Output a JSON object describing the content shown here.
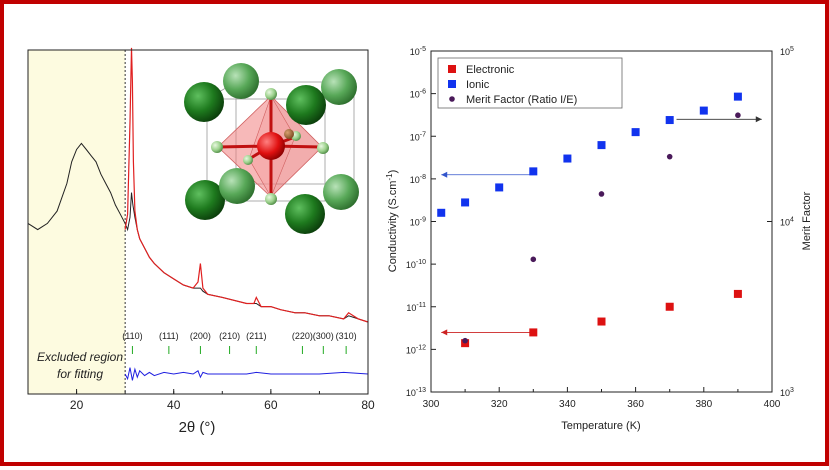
{
  "frame_color": "#c00000",
  "chart_data": [
    {
      "type": "line",
      "xlabel": "2θ (°)",
      "ylabel": "",
      "xlim": [
        10,
        80
      ],
      "x_ticks": [
        20,
        40,
        60,
        80
      ],
      "excluded_region": {
        "x_range": [
          10,
          30
        ],
        "label_line1": "Excluded region",
        "label_line2": "for fitting",
        "color": "#fdfbe0"
      },
      "series": [
        {
          "color": "#222222",
          "x": [
            10,
            12,
            14,
            16,
            18,
            19,
            20,
            21,
            22,
            23,
            24,
            25,
            26,
            27,
            28,
            29,
            30,
            30.5,
            31,
            31.3,
            31.6,
            32,
            32.5,
            33,
            34,
            35,
            36,
            38,
            40,
            42,
            44,
            45,
            45.5,
            46,
            47,
            50,
            55,
            56.5,
            57,
            58,
            60,
            62,
            65,
            67,
            70,
            72,
            75,
            76,
            78,
            80
          ],
          "y": [
            0.42,
            0.4,
            0.42,
            0.46,
            0.55,
            0.62,
            0.66,
            0.68,
            0.66,
            0.64,
            0.62,
            0.58,
            0.55,
            0.52,
            0.48,
            0.45,
            0.42,
            0.4,
            0.44,
            0.52,
            0.48,
            0.44,
            0.4,
            0.37,
            0.34,
            0.31,
            0.29,
            0.26,
            0.24,
            0.22,
            0.21,
            0.21,
            0.21,
            0.2,
            0.19,
            0.18,
            0.16,
            0.16,
            0.16,
            0.15,
            0.15,
            0.14,
            0.13,
            0.13,
            0.12,
            0.12,
            0.11,
            0.12,
            0.11,
            0.1
          ]
        },
        {
          "color": "#e02020",
          "x": [
            30,
            30.5,
            31,
            31.3,
            31.5,
            31.7,
            32,
            32.5,
            33,
            34,
            35,
            36,
            38,
            40,
            42,
            44,
            45,
            45.5,
            46,
            47,
            50,
            55,
            56.5,
            57,
            58,
            60,
            62,
            65,
            67,
            70,
            72,
            75,
            76,
            78,
            80
          ],
          "y": [
            0.4,
            0.45,
            0.75,
            0.99,
            0.88,
            0.62,
            0.46,
            0.4,
            0.37,
            0.34,
            0.31,
            0.29,
            0.26,
            0.24,
            0.22,
            0.21,
            0.23,
            0.29,
            0.21,
            0.19,
            0.18,
            0.16,
            0.16,
            0.18,
            0.15,
            0.15,
            0.14,
            0.13,
            0.13,
            0.12,
            0.12,
            0.11,
            0.13,
            0.11,
            0.1
          ]
        },
        {
          "color": "#2020e0",
          "x": [
            30,
            30.5,
            31,
            31.5,
            32,
            32.5,
            33,
            34,
            35,
            36,
            38,
            40,
            42,
            44,
            45,
            45.5,
            46,
            47,
            50,
            55,
            57,
            60,
            65,
            70,
            75,
            80
          ],
          "y": [
            0.0,
            -0.03,
            0.04,
            -0.04,
            0.03,
            -0.02,
            0.02,
            -0.01,
            0.01,
            -0.01,
            0.01,
            0.0,
            0.01,
            0.0,
            0.02,
            -0.02,
            0.01,
            0.0,
            0.0,
            0.0,
            0.01,
            0.0,
            0.0,
            0.0,
            0.01,
            0.0
          ]
        }
      ],
      "peak_labels": [
        {
          "text": "(110)",
          "x": 31.5
        },
        {
          "text": "(111)",
          "x": 39
        },
        {
          "text": "(200)",
          "x": 45.5
        },
        {
          "text": "(210)",
          "x": 51.5
        },
        {
          "text": "(211)",
          "x": 57
        },
        {
          "text": "(220)",
          "x": 66.5
        },
        {
          "text": "(300)",
          "x": 70.8
        },
        {
          "text": "(310)",
          "x": 75.5
        }
      ],
      "tick_mark_color": "#22aa22"
    },
    {
      "type": "scatter",
      "xlabel": "Temperature (K)",
      "ylabel": "Conductivity (S.cm",
      "ylabel_sup": "-1",
      "ylabel_close": ")",
      "y2label": "Merit Factor",
      "xlim": [
        300,
        400
      ],
      "x_ticks": [
        300,
        320,
        340,
        360,
        380,
        400
      ],
      "ylim_exp": [
        -13,
        -5
      ],
      "y_ticks": [
        {
          "exp": -13,
          "base": "10",
          "sup": "-13"
        },
        {
          "exp": -12,
          "base": "10",
          "sup": "-12"
        },
        {
          "exp": -11,
          "base": "10",
          "sup": "-11"
        },
        {
          "exp": -10,
          "base": "10",
          "sup": "-10"
        },
        {
          "exp": -9,
          "base": "10",
          "sup": "-9"
        },
        {
          "exp": -8,
          "base": "10",
          "sup": "-8"
        },
        {
          "exp": -7,
          "base": "10",
          "sup": "-7"
        },
        {
          "exp": -6,
          "base": "10",
          "sup": "-6"
        },
        {
          "exp": -5,
          "base": "10",
          "sup": "-5"
        }
      ],
      "y2lim_exp": [
        3,
        5
      ],
      "y2_ticks": [
        {
          "exp": 3,
          "base": "10",
          "sup": "3"
        },
        {
          "exp": 4,
          "base": "10",
          "sup": "4"
        },
        {
          "exp": 5,
          "base": "10",
          "sup": "5"
        }
      ],
      "legend_position": "top-left",
      "series": [
        {
          "name": "Electronic",
          "color": "#dd1111",
          "marker": "square",
          "axis": "left",
          "x": [
            310,
            330,
            350,
            370,
            390
          ],
          "y": [
            1.4e-12,
            2.5e-12,
            4.5e-12,
            1e-11,
            2e-11
          ]
        },
        {
          "name": "Ionic",
          "color": "#1133ee",
          "marker": "square",
          "axis": "left",
          "x": [
            303,
            310,
            320,
            330,
            340,
            350,
            360,
            370,
            380,
            390
          ],
          "y": [
            1.6e-09,
            2.8e-09,
            6.3e-09,
            1.5e-08,
            3e-08,
            6.2e-08,
            1.25e-07,
            2.4e-07,
            4e-07,
            8.5e-07
          ]
        },
        {
          "name": "Merit Factor (Ratio I/E)",
          "color": "#4a1a5a",
          "marker": "circle",
          "axis": "right",
          "x": [
            310,
            330,
            350,
            370,
            390
          ],
          "y": [
            2000,
            6000,
            14500,
            24000,
            42000
          ]
        }
      ],
      "arrows": [
        {
          "from_x": 330,
          "to_x": 303,
          "at_y": 1.25e-08,
          "color": "#3355cc"
        },
        {
          "from_x": 330,
          "to_x": 303,
          "at_y": 2.5e-12,
          "color": "#cc2222"
        },
        {
          "from_x": 372,
          "to_x": 397,
          "at_y": 2.5e-07,
          "color": "#333333"
        }
      ]
    }
  ]
}
